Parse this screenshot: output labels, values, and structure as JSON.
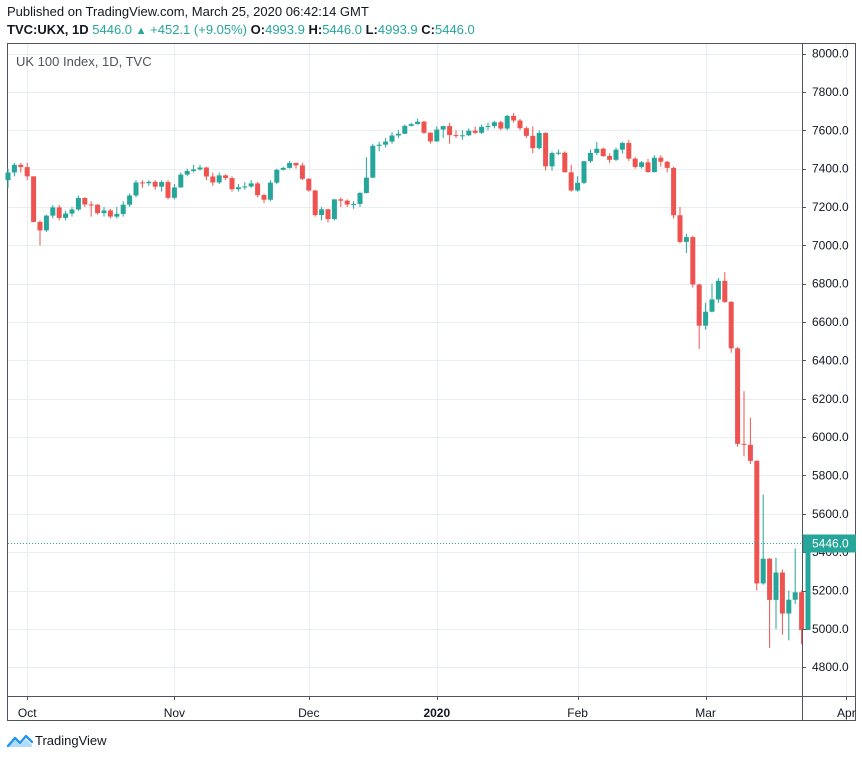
{
  "header": {
    "published": "Published on TradingView.com, March 25, 2020 06:42:14 GMT",
    "symbol": "TVC:UKX, 1D",
    "price": "5446.0",
    "change_arrow": "▲",
    "change": "+452.1 (+9.05%)",
    "o_label": "O:",
    "o_value": "4993.9",
    "h_label": "H:",
    "h_value": "5446.0",
    "l_label": "L:",
    "l_value": "4993.9",
    "c_label": "C:",
    "c_value": "5446.0"
  },
  "brand": {
    "name": "TradingView",
    "icon": "tradingview-logo-icon"
  },
  "colors": {
    "up": "#26a69a",
    "down": "#ef5350",
    "grid": "#e9eef3",
    "axis": "#50535e",
    "text": "#131722"
  },
  "chart_data": {
    "type": "candlestick",
    "title": "UK 100 Index, 1D, TVC",
    "last_price_label": "5446.0",
    "last_price": 5446.0,
    "ylim": [
      4650,
      8050
    ],
    "y_ticks": [
      4800,
      5000,
      5200,
      5400,
      5600,
      5800,
      6000,
      6200,
      6400,
      6600,
      6800,
      7000,
      7200,
      7400,
      7600,
      7800,
      8000
    ],
    "y_tick_labels": [
      "4800.0",
      "5000.0",
      "5200.0",
      "5400.0",
      "5600.0",
      "5800.0",
      "6000.0",
      "6200.0",
      "6400.0",
      "6600.0",
      "6800.0",
      "7000.0",
      "7200.0",
      "7400.0",
      "7600.0",
      "7800.0",
      "8000.0"
    ],
    "x_labels": [
      {
        "label": "Oct",
        "date": "2019-10-01",
        "bold": false
      },
      {
        "label": "Nov",
        "date": "2019-11-01",
        "bold": false
      },
      {
        "label": "Dec",
        "date": "2019-12-02",
        "bold": false
      },
      {
        "label": "2020",
        "date": "2020-01-02",
        "bold": true
      },
      {
        "label": "Feb",
        "date": "2020-02-03",
        "bold": false
      },
      {
        "label": "Mar",
        "date": "2020-03-02",
        "bold": false
      },
      {
        "label": "Apr",
        "date": "2020-04-01",
        "bold": false
      }
    ],
    "grid": true,
    "candles": [
      {
        "date": "2019-09-26",
        "o": 7340,
        "h": 7400,
        "l": 7300,
        "c": 7380
      },
      {
        "date": "2019-09-27",
        "o": 7380,
        "h": 7430,
        "l": 7360,
        "c": 7420
      },
      {
        "date": "2019-09-30",
        "o": 7420,
        "h": 7430,
        "l": 7380,
        "c": 7408
      },
      {
        "date": "2019-10-01",
        "o": 7408,
        "h": 7430,
        "l": 7340,
        "c": 7360
      },
      {
        "date": "2019-10-02",
        "o": 7360,
        "h": 7360,
        "l": 7120,
        "c": 7122
      },
      {
        "date": "2019-10-03",
        "o": 7122,
        "h": 7130,
        "l": 7000,
        "c": 7078
      },
      {
        "date": "2019-10-04",
        "o": 7078,
        "h": 7160,
        "l": 7070,
        "c": 7155
      },
      {
        "date": "2019-10-07",
        "o": 7155,
        "h": 7210,
        "l": 7140,
        "c": 7198
      },
      {
        "date": "2019-10-08",
        "o": 7198,
        "h": 7210,
        "l": 7130,
        "c": 7143
      },
      {
        "date": "2019-10-09",
        "o": 7143,
        "h": 7180,
        "l": 7130,
        "c": 7166
      },
      {
        "date": "2019-10-10",
        "o": 7166,
        "h": 7200,
        "l": 7150,
        "c": 7187
      },
      {
        "date": "2019-10-11",
        "o": 7187,
        "h": 7260,
        "l": 7180,
        "c": 7247
      },
      {
        "date": "2019-10-14",
        "o": 7247,
        "h": 7250,
        "l": 7200,
        "c": 7213
      },
      {
        "date": "2019-10-15",
        "o": 7213,
        "h": 7230,
        "l": 7150,
        "c": 7212
      },
      {
        "date": "2019-10-16",
        "o": 7212,
        "h": 7215,
        "l": 7160,
        "c": 7168
      },
      {
        "date": "2019-10-17",
        "o": 7168,
        "h": 7200,
        "l": 7150,
        "c": 7182
      },
      {
        "date": "2019-10-18",
        "o": 7182,
        "h": 7190,
        "l": 7140,
        "c": 7150
      },
      {
        "date": "2019-10-21",
        "o": 7150,
        "h": 7200,
        "l": 7140,
        "c": 7164
      },
      {
        "date": "2019-10-22",
        "o": 7164,
        "h": 7230,
        "l": 7150,
        "c": 7212
      },
      {
        "date": "2019-10-23",
        "o": 7212,
        "h": 7270,
        "l": 7200,
        "c": 7260
      },
      {
        "date": "2019-10-24",
        "o": 7260,
        "h": 7340,
        "l": 7250,
        "c": 7328
      },
      {
        "date": "2019-10-25",
        "o": 7328,
        "h": 7340,
        "l": 7300,
        "c": 7324
      },
      {
        "date": "2019-10-28",
        "o": 7324,
        "h": 7340,
        "l": 7310,
        "c": 7331
      },
      {
        "date": "2019-10-29",
        "o": 7331,
        "h": 7340,
        "l": 7290,
        "c": 7306
      },
      {
        "date": "2019-10-30",
        "o": 7306,
        "h": 7340,
        "l": 7280,
        "c": 7330
      },
      {
        "date": "2019-10-31",
        "o": 7330,
        "h": 7340,
        "l": 7240,
        "c": 7248
      },
      {
        "date": "2019-11-01",
        "o": 7248,
        "h": 7320,
        "l": 7240,
        "c": 7302
      },
      {
        "date": "2019-11-04",
        "o": 7302,
        "h": 7380,
        "l": 7300,
        "c": 7369
      },
      {
        "date": "2019-11-05",
        "o": 7369,
        "h": 7400,
        "l": 7360,
        "c": 7388
      },
      {
        "date": "2019-11-06",
        "o": 7388,
        "h": 7420,
        "l": 7380,
        "c": 7396
      },
      {
        "date": "2019-11-07",
        "o": 7396,
        "h": 7420,
        "l": 7390,
        "c": 7406
      },
      {
        "date": "2019-11-08",
        "o": 7406,
        "h": 7410,
        "l": 7340,
        "c": 7359
      },
      {
        "date": "2019-11-11",
        "o": 7359,
        "h": 7380,
        "l": 7310,
        "c": 7328
      },
      {
        "date": "2019-11-12",
        "o": 7328,
        "h": 7380,
        "l": 7320,
        "c": 7365
      },
      {
        "date": "2019-11-13",
        "o": 7365,
        "h": 7370,
        "l": 7340,
        "c": 7351
      },
      {
        "date": "2019-11-14",
        "o": 7351,
        "h": 7360,
        "l": 7280,
        "c": 7293
      },
      {
        "date": "2019-11-15",
        "o": 7293,
        "h": 7320,
        "l": 7280,
        "c": 7303
      },
      {
        "date": "2019-11-18",
        "o": 7303,
        "h": 7330,
        "l": 7290,
        "c": 7307
      },
      {
        "date": "2019-11-19",
        "o": 7307,
        "h": 7340,
        "l": 7300,
        "c": 7323
      },
      {
        "date": "2019-11-20",
        "o": 7323,
        "h": 7330,
        "l": 7250,
        "c": 7262
      },
      {
        "date": "2019-11-21",
        "o": 7262,
        "h": 7270,
        "l": 7220,
        "c": 7238
      },
      {
        "date": "2019-11-22",
        "o": 7238,
        "h": 7340,
        "l": 7230,
        "c": 7327
      },
      {
        "date": "2019-11-25",
        "o": 7327,
        "h": 7400,
        "l": 7320,
        "c": 7394
      },
      {
        "date": "2019-11-26",
        "o": 7394,
        "h": 7410,
        "l": 7390,
        "c": 7404
      },
      {
        "date": "2019-11-27",
        "o": 7404,
        "h": 7440,
        "l": 7400,
        "c": 7430
      },
      {
        "date": "2019-11-28",
        "o": 7430,
        "h": 7430,
        "l": 7400,
        "c": 7417
      },
      {
        "date": "2019-11-29",
        "o": 7417,
        "h": 7430,
        "l": 7340,
        "c": 7347
      },
      {
        "date": "2019-12-02",
        "o": 7347,
        "h": 7350,
        "l": 7280,
        "c": 7286
      },
      {
        "date": "2019-12-03",
        "o": 7286,
        "h": 7290,
        "l": 7150,
        "c": 7158
      },
      {
        "date": "2019-12-04",
        "o": 7158,
        "h": 7200,
        "l": 7130,
        "c": 7188
      },
      {
        "date": "2019-12-05",
        "o": 7188,
        "h": 7190,
        "l": 7120,
        "c": 7137
      },
      {
        "date": "2019-12-06",
        "o": 7137,
        "h": 7240,
        "l": 7130,
        "c": 7240
      },
      {
        "date": "2019-12-09",
        "o": 7240,
        "h": 7250,
        "l": 7200,
        "c": 7233
      },
      {
        "date": "2019-12-10",
        "o": 7233,
        "h": 7240,
        "l": 7200,
        "c": 7213
      },
      {
        "date": "2019-12-11",
        "o": 7213,
        "h": 7230,
        "l": 7190,
        "c": 7216
      },
      {
        "date": "2019-12-12",
        "o": 7216,
        "h": 7280,
        "l": 7200,
        "c": 7273
      },
      {
        "date": "2019-12-13",
        "o": 7273,
        "h": 7460,
        "l": 7270,
        "c": 7353
      },
      {
        "date": "2019-12-16",
        "o": 7353,
        "h": 7530,
        "l": 7350,
        "c": 7519
      },
      {
        "date": "2019-12-17",
        "o": 7519,
        "h": 7540,
        "l": 7490,
        "c": 7525
      },
      {
        "date": "2019-12-18",
        "o": 7525,
        "h": 7560,
        "l": 7510,
        "c": 7541
      },
      {
        "date": "2019-12-19",
        "o": 7541,
        "h": 7590,
        "l": 7530,
        "c": 7573
      },
      {
        "date": "2019-12-20",
        "o": 7573,
        "h": 7600,
        "l": 7560,
        "c": 7582
      },
      {
        "date": "2019-12-23",
        "o": 7582,
        "h": 7630,
        "l": 7580,
        "c": 7623
      },
      {
        "date": "2019-12-24",
        "o": 7623,
        "h": 7640,
        "l": 7620,
        "c": 7632
      },
      {
        "date": "2019-12-27",
        "o": 7632,
        "h": 7660,
        "l": 7630,
        "c": 7645
      },
      {
        "date": "2019-12-30",
        "o": 7645,
        "h": 7650,
        "l": 7580,
        "c": 7587
      },
      {
        "date": "2019-12-31",
        "o": 7587,
        "h": 7590,
        "l": 7530,
        "c": 7542
      },
      {
        "date": "2020-01-02",
        "o": 7542,
        "h": 7620,
        "l": 7540,
        "c": 7604
      },
      {
        "date": "2020-01-03",
        "o": 7604,
        "h": 7620,
        "l": 7560,
        "c": 7622
      },
      {
        "date": "2020-01-06",
        "o": 7622,
        "h": 7640,
        "l": 7530,
        "c": 7575
      },
      {
        "date": "2020-01-07",
        "o": 7575,
        "h": 7600,
        "l": 7560,
        "c": 7573
      },
      {
        "date": "2020-01-08",
        "o": 7573,
        "h": 7600,
        "l": 7550,
        "c": 7574
      },
      {
        "date": "2020-01-09",
        "o": 7574,
        "h": 7610,
        "l": 7570,
        "c": 7598
      },
      {
        "date": "2020-01-10",
        "o": 7598,
        "h": 7620,
        "l": 7580,
        "c": 7587
      },
      {
        "date": "2020-01-13",
        "o": 7587,
        "h": 7630,
        "l": 7580,
        "c": 7618
      },
      {
        "date": "2020-01-14",
        "o": 7618,
        "h": 7640,
        "l": 7600,
        "c": 7622
      },
      {
        "date": "2020-01-15",
        "o": 7622,
        "h": 7650,
        "l": 7610,
        "c": 7642
      },
      {
        "date": "2020-01-16",
        "o": 7642,
        "h": 7650,
        "l": 7600,
        "c": 7609
      },
      {
        "date": "2020-01-17",
        "o": 7609,
        "h": 7680,
        "l": 7600,
        "c": 7675
      },
      {
        "date": "2020-01-20",
        "o": 7675,
        "h": 7690,
        "l": 7640,
        "c": 7651
      },
      {
        "date": "2020-01-21",
        "o": 7651,
        "h": 7660,
        "l": 7600,
        "c": 7611
      },
      {
        "date": "2020-01-22",
        "o": 7611,
        "h": 7620,
        "l": 7560,
        "c": 7571
      },
      {
        "date": "2020-01-23",
        "o": 7571,
        "h": 7620,
        "l": 7480,
        "c": 7507
      },
      {
        "date": "2020-01-24",
        "o": 7507,
        "h": 7600,
        "l": 7500,
        "c": 7586
      },
      {
        "date": "2020-01-27",
        "o": 7586,
        "h": 7590,
        "l": 7390,
        "c": 7412
      },
      {
        "date": "2020-01-28",
        "o": 7412,
        "h": 7490,
        "l": 7390,
        "c": 7481
      },
      {
        "date": "2020-01-29",
        "o": 7481,
        "h": 7500,
        "l": 7470,
        "c": 7483
      },
      {
        "date": "2020-01-30",
        "o": 7483,
        "h": 7490,
        "l": 7380,
        "c": 7381
      },
      {
        "date": "2020-01-31",
        "o": 7381,
        "h": 7420,
        "l": 7280,
        "c": 7286
      },
      {
        "date": "2020-02-03",
        "o": 7286,
        "h": 7360,
        "l": 7280,
        "c": 7326
      },
      {
        "date": "2020-02-04",
        "o": 7326,
        "h": 7440,
        "l": 7320,
        "c": 7439
      },
      {
        "date": "2020-02-05",
        "o": 7439,
        "h": 7500,
        "l": 7430,
        "c": 7482
      },
      {
        "date": "2020-02-06",
        "o": 7482,
        "h": 7540,
        "l": 7470,
        "c": 7504
      },
      {
        "date": "2020-02-07",
        "o": 7504,
        "h": 7510,
        "l": 7460,
        "c": 7466
      },
      {
        "date": "2020-02-10",
        "o": 7466,
        "h": 7480,
        "l": 7430,
        "c": 7446
      },
      {
        "date": "2020-02-11",
        "o": 7446,
        "h": 7510,
        "l": 7440,
        "c": 7499
      },
      {
        "date": "2020-02-12",
        "o": 7499,
        "h": 7540,
        "l": 7480,
        "c": 7534
      },
      {
        "date": "2020-02-13",
        "o": 7534,
        "h": 7550,
        "l": 7440,
        "c": 7452
      },
      {
        "date": "2020-02-14",
        "o": 7452,
        "h": 7460,
        "l": 7400,
        "c": 7409
      },
      {
        "date": "2020-02-17",
        "o": 7409,
        "h": 7440,
        "l": 7400,
        "c": 7433
      },
      {
        "date": "2020-02-18",
        "o": 7433,
        "h": 7450,
        "l": 7380,
        "c": 7382
      },
      {
        "date": "2020-02-19",
        "o": 7382,
        "h": 7470,
        "l": 7380,
        "c": 7457
      },
      {
        "date": "2020-02-20",
        "o": 7457,
        "h": 7470,
        "l": 7410,
        "c": 7436
      },
      {
        "date": "2020-02-21",
        "o": 7436,
        "h": 7440,
        "l": 7380,
        "c": 7404
      },
      {
        "date": "2020-02-24",
        "o": 7404,
        "h": 7410,
        "l": 7140,
        "c": 7157
      },
      {
        "date": "2020-02-25",
        "o": 7157,
        "h": 7200,
        "l": 7010,
        "c": 7018
      },
      {
        "date": "2020-02-26",
        "o": 7018,
        "h": 7060,
        "l": 6960,
        "c": 7043
      },
      {
        "date": "2020-02-27",
        "o": 7043,
        "h": 7050,
        "l": 6780,
        "c": 6796
      },
      {
        "date": "2020-02-28",
        "o": 6796,
        "h": 6800,
        "l": 6460,
        "c": 6581
      },
      {
        "date": "2020-03-02",
        "o": 6581,
        "h": 6700,
        "l": 6560,
        "c": 6654
      },
      {
        "date": "2020-03-03",
        "o": 6654,
        "h": 6800,
        "l": 6650,
        "c": 6718
      },
      {
        "date": "2020-03-04",
        "o": 6718,
        "h": 6830,
        "l": 6700,
        "c": 6815
      },
      {
        "date": "2020-03-05",
        "o": 6815,
        "h": 6860,
        "l": 6700,
        "c": 6705
      },
      {
        "date": "2020-03-06",
        "o": 6705,
        "h": 6710,
        "l": 6440,
        "c": 6463
      },
      {
        "date": "2020-03-09",
        "o": 6463,
        "h": 6470,
        "l": 5950,
        "c": 5965
      },
      {
        "date": "2020-03-10",
        "o": 5965,
        "h": 6240,
        "l": 5900,
        "c": 5960
      },
      {
        "date": "2020-03-11",
        "o": 5960,
        "h": 6100,
        "l": 5860,
        "c": 5876
      },
      {
        "date": "2020-03-12",
        "o": 5876,
        "h": 5880,
        "l": 5200,
        "c": 5237
      },
      {
        "date": "2020-03-13",
        "o": 5237,
        "h": 5700,
        "l": 5230,
        "c": 5366
      },
      {
        "date": "2020-03-16",
        "o": 5366,
        "h": 5370,
        "l": 4900,
        "c": 5151
      },
      {
        "date": "2020-03-17",
        "o": 5151,
        "h": 5370,
        "l": 5000,
        "c": 5294
      },
      {
        "date": "2020-03-18",
        "o": 5294,
        "h": 5310,
        "l": 4970,
        "c": 5080
      },
      {
        "date": "2020-03-19",
        "o": 5080,
        "h": 5200,
        "l": 4940,
        "c": 5152
      },
      {
        "date": "2020-03-20",
        "o": 5152,
        "h": 5420,
        "l": 5130,
        "c": 5191
      },
      {
        "date": "2020-03-23",
        "o": 5191,
        "h": 5200,
        "l": 4920,
        "c": 4994
      },
      {
        "date": "2020-03-24",
        "o": 4994,
        "h": 5446,
        "l": 4994,
        "c": 5446
      }
    ]
  }
}
